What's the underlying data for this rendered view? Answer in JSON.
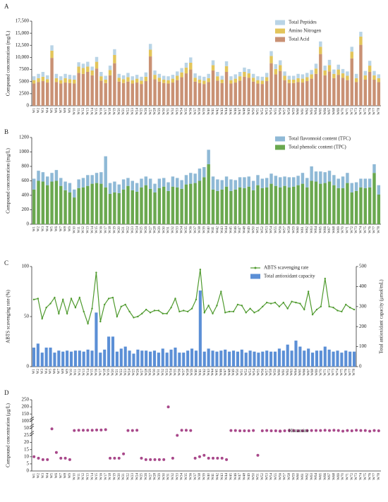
{
  "chart_data": [
    {
      "type": "bar",
      "panel_label": "A",
      "stacked": true,
      "y_label": "Compound concentration (mg/L)",
      "legend": "upper right",
      "categories": [
        "W1",
        "W2",
        "W3",
        "W4",
        "W5",
        "W6",
        "W7",
        "W8",
        "W9",
        "W10",
        "W11",
        "W12",
        "W13",
        "W14",
        "W15",
        "W16",
        "W17",
        "W18",
        "W19",
        "W20",
        "W21",
        "W22",
        "W23",
        "W24",
        "W25",
        "W26",
        "W27",
        "W28",
        "W29",
        "W30",
        "W31",
        "W32",
        "W33",
        "W34",
        "W35",
        "W36",
        "W37",
        "W38",
        "W39",
        "W40",
        "W41",
        "W42",
        "W43",
        "W44",
        "W45",
        "W46",
        "W47",
        "W48",
        "W49",
        "W50",
        "W51",
        "W52",
        "W53",
        "W54",
        "W55",
        "W56",
        "W57",
        "W58",
        "W59",
        "W60",
        "W61",
        "W62",
        "W63",
        "W64",
        "W65",
        "W66",
        "W67",
        "W68",
        "W69",
        "W70",
        "W71",
        "W72",
        "W73",
        "W74",
        "W75",
        "W76",
        "W77",
        "W78"
      ],
      "ylim": [
        0,
        17500
      ],
      "yticks": [
        0,
        2500,
        5000,
        7500,
        {
          "value": 10000,
          "label": "10,000"
        },
        {
          "value": 12500,
          "label": "12,500"
        },
        {
          "value": 15000,
          "label": "15,000"
        },
        {
          "value": 17500,
          "label": "17,500"
        }
      ],
      "series": [
        {
          "name": "Total Acid",
          "color": "#c99174",
          "values": [
            4600,
            4900,
            5100,
            4800,
            9900,
            4900,
            4600,
            4800,
            4700,
            4600,
            6800,
            6600,
            7000,
            6300,
            7700,
            5200,
            4700,
            6300,
            8800,
            5000,
            4700,
            5000,
            4600,
            4800,
            4500,
            5100,
            10200,
            5500,
            5000,
            4700,
            4600,
            4800,
            5300,
            5900,
            6700,
            7500,
            5000,
            4700,
            4500,
            4900,
            7300,
            5200,
            4700,
            7000,
            4600,
            4800,
            5200,
            6000,
            5800,
            5000,
            4600,
            4500,
            5100,
            8800,
            6500,
            7200,
            5300,
            4700,
            4700,
            4900,
            4800,
            5100,
            5600,
            6600,
            10700,
            6300,
            7100,
            5700,
            6400,
            5800,
            5300,
            9800,
            4900,
            12600,
            5400,
            7000,
            5400,
            4900
          ]
        },
        {
          "name": "Amino Nitrogen",
          "color": "#e3c55a",
          "values": [
            700,
            800,
            900,
            700,
            1500,
            800,
            700,
            900,
            800,
            800,
            1300,
            1200,
            1100,
            1000,
            1400,
            900,
            700,
            1100,
            1700,
            800,
            800,
            900,
            700,
            800,
            700,
            900,
            1400,
            900,
            800,
            700,
            700,
            800,
            900,
            1000,
            1200,
            1400,
            800,
            700,
            700,
            800,
            1100,
            900,
            700,
            1200,
            700,
            800,
            900,
            1000,
            900,
            800,
            700,
            700,
            800,
            1500,
            1100,
            1200,
            900,
            700,
            700,
            800,
            800,
            800,
            900,
            1100,
            1500,
            1000,
            1300,
            900,
            1100,
            900,
            900,
            1400,
            800,
            1700,
            900,
            1300,
            900,
            800
          ]
        },
        {
          "name": "Total Peptides",
          "color": "#b9d4e6",
          "values": [
            800,
            900,
            1000,
            800,
            1100,
            900,
            800,
            900,
            900,
            900,
            900,
            900,
            1000,
            800,
            1000,
            900,
            800,
            900,
            1200,
            800,
            800,
            900,
            800,
            800,
            800,
            900,
            1200,
            900,
            800,
            800,
            800,
            800,
            900,
            900,
            1000,
            1100,
            900,
            800,
            800,
            900,
            1000,
            900,
            800,
            1000,
            800,
            900,
            900,
            900,
            900,
            800,
            800,
            800,
            900,
            1000,
            1000,
            1000,
            900,
            800,
            800,
            900,
            900,
            900,
            900,
            1000,
            1100,
            1000,
            1100,
            900,
            1000,
            900,
            900,
            1000,
            900,
            1000,
            900,
            1000,
            900,
            800
          ]
        }
      ]
    },
    {
      "type": "bar",
      "panel_label": "B",
      "stacked": true,
      "y_label": "Compound concentration (mg/L)",
      "legend": "upper right",
      "categories": [
        "W1",
        "W2",
        "W3",
        "W4",
        "W5",
        "W6",
        "W7",
        "W8",
        "W9",
        "W10",
        "W11",
        "W12",
        "W13",
        "W14",
        "W15",
        "W16",
        "W17",
        "W18",
        "W19",
        "W20",
        "W21",
        "W22",
        "W23",
        "W24",
        "W25",
        "W26",
        "W27",
        "W28",
        "W29",
        "W30",
        "W31",
        "W32",
        "W33",
        "W34",
        "W35",
        "W36",
        "W37",
        "W38",
        "W39",
        "W40",
        "W41",
        "W42",
        "W43",
        "W44",
        "W45",
        "W46",
        "W47",
        "W48",
        "W49",
        "W50",
        "W51",
        "W52",
        "W53",
        "W54",
        "W55",
        "W56",
        "W57",
        "W58",
        "W59",
        "W60",
        "W61",
        "W62",
        "W63",
        "W64",
        "W65",
        "W66",
        "W67",
        "W68",
        "W69",
        "W70",
        "W71",
        "W72",
        "W73",
        "W74",
        "W75",
        "W76",
        "W77",
        "W78"
      ],
      "ylim": [
        0,
        1200
      ],
      "yticks": [
        0,
        200,
        400,
        600,
        800,
        1000,
        1200
      ],
      "series": [
        {
          "name": "Total phenolic content (TPC)",
          "color": "#6aa84f",
          "values": [
            480,
            600,
            590,
            540,
            590,
            600,
            530,
            470,
            440,
            370,
            500,
            510,
            530,
            560,
            570,
            560,
            510,
            420,
            440,
            430,
            480,
            530,
            470,
            450,
            510,
            540,
            490,
            440,
            500,
            520,
            460,
            520,
            510,
            490,
            550,
            560,
            570,
            600,
            650,
            830,
            480,
            460,
            480,
            520,
            460,
            480,
            510,
            500,
            520,
            470,
            540,
            500,
            510,
            560,
            530,
            510,
            530,
            510,
            520,
            540,
            560,
            510,
            600,
            590,
            560,
            570,
            590,
            540,
            500,
            500,
            570,
            440,
            460,
            510,
            500,
            510,
            710,
            410
          ]
        },
        {
          "name": "Total flavonnoid content (TFC)",
          "color": "#8fb9d6",
          "values": [
            150,
            140,
            130,
            120,
            120,
            150,
            110,
            120,
            130,
            110,
            120,
            130,
            150,
            120,
            140,
            160,
            430,
            150,
            150,
            120,
            140,
            110,
            130,
            120,
            120,
            120,
            140,
            120,
            130,
            120,
            120,
            140,
            130,
            120,
            130,
            150,
            130,
            170,
            140,
            200,
            180,
            160,
            130,
            140,
            160,
            130,
            140,
            150,
            140,
            130,
            140,
            130,
            130,
            140,
            140,
            140,
            130,
            140,
            130,
            130,
            150,
            130,
            200,
            140,
            170,
            150,
            150,
            140,
            130,
            160,
            140,
            130,
            120,
            120,
            130,
            120,
            120,
            130
          ]
        }
      ]
    },
    {
      "type": "bar",
      "panel_label": "C",
      "stacked": false,
      "y_label": "ABTS scavenging rate (%)",
      "y2_label": "Total antioxidant capacity (μmol/mL)",
      "legend": "upper right",
      "categories": [
        "W1",
        "W2",
        "W3",
        "W4",
        "W5",
        "W6",
        "W7",
        "W8",
        "W9",
        "W10",
        "W11",
        "W12",
        "W13",
        "W14",
        "W15",
        "W16",
        "W17",
        "W18",
        "W19",
        "W20",
        "W21",
        "W22",
        "W23",
        "W24",
        "W25",
        "W26",
        "W27",
        "W28",
        "W29",
        "W30",
        "W31",
        "W32",
        "W33",
        "W34",
        "W35",
        "W36",
        "W37",
        "W38",
        "W39",
        "W40",
        "W41",
        "W42",
        "W43",
        "W44",
        "W45",
        "W46",
        "W47",
        "W48",
        "W49",
        "W50",
        "W51",
        "W52",
        "W53",
        "W54",
        "W55",
        "W56",
        "W57",
        "W58",
        "W59",
        "W60",
        "W61",
        "W62",
        "W63",
        "W64",
        "W65",
        "W66",
        "W67",
        "W68",
        "W69",
        "W70",
        "W71",
        "W72",
        "W73",
        "W74",
        "W75",
        "W76",
        "W77",
        "W78"
      ],
      "ylim": [
        0,
        100
      ],
      "yticks": [
        0,
        50,
        100
      ],
      "y2lim": [
        0,
        500
      ],
      "y2ticks": [
        0,
        100,
        200,
        300,
        400,
        500
      ],
      "series": [
        {
          "name": "ABTS scavenging rate",
          "type": "line",
          "color": "#4f9a2e",
          "values": [
            67,
            68,
            48,
            59,
            63,
            69,
            53,
            67,
            53,
            68,
            59,
            69,
            55,
            43,
            58,
            94,
            45,
            62,
            68,
            69,
            50,
            60,
            62,
            55,
            49,
            50,
            53,
            57,
            54,
            56,
            56,
            53,
            53,
            59,
            68,
            55,
            56,
            55,
            58,
            67,
            97,
            54,
            61,
            53,
            61,
            75,
            54,
            55,
            55,
            62,
            61,
            54,
            58,
            54,
            56,
            60,
            64,
            63,
            64,
            60,
            64,
            58,
            65,
            64,
            63,
            57,
            75,
            52,
            57,
            60,
            88,
            60,
            59,
            56,
            55,
            62,
            59,
            57
          ]
        },
        {
          "name": "Total antioxidant capacity",
          "type": "bar",
          "axis": "y2",
          "color": "#5b8fd6",
          "values": [
            95,
            115,
            70,
            95,
            95,
            70,
            80,
            75,
            80,
            75,
            80,
            80,
            75,
            85,
            80,
            270,
            70,
            85,
            150,
            150,
            75,
            90,
            100,
            80,
            65,
            85,
            80,
            80,
            75,
            80,
            70,
            90,
            70,
            85,
            95,
            70,
            70,
            80,
            90,
            80,
            380,
            75,
            90,
            80,
            75,
            80,
            85,
            75,
            80,
            75,
            85,
            70,
            80,
            75,
            70,
            75,
            80,
            75,
            75,
            90,
            80,
            110,
            80,
            130,
            100,
            80,
            90,
            70,
            80,
            80,
            100,
            85,
            75,
            80,
            70,
            80,
            75,
            75
          ]
        }
      ]
    },
    {
      "type": "scatter",
      "panel_label": "D",
      "axis_break": true,
      "y_label": "Compound concentration (μg/L)",
      "legend": "right",
      "categories": [
        "W1",
        "W2",
        "W3",
        "W4",
        "W5",
        "W6",
        "W7",
        "W8",
        "W9",
        "W10",
        "W11",
        "W12",
        "W13",
        "W14",
        "W15",
        "W16",
        "W17",
        "W18",
        "W19",
        "W20",
        "W21",
        "W22",
        "W23",
        "W24",
        "W25",
        "W26",
        "W27",
        "W28",
        "W29",
        "W30",
        "W31",
        "W32",
        "W33",
        "W34",
        "W35",
        "W36",
        "W37",
        "W38",
        "W39",
        "W40",
        "W41",
        "W42",
        "W43",
        "W44",
        "W45",
        "W46",
        "W47",
        "W48",
        "W49",
        "W50",
        "W51",
        "W52",
        "W53",
        "W54",
        "W55",
        "W56",
        "W57",
        "W58",
        "W59",
        "W60",
        "W61",
        "W62",
        "W63",
        "W64",
        "W65",
        "W66",
        "W67",
        "W68",
        "W69",
        "W70",
        "W71",
        "W72",
        "W73",
        "W74",
        "W75",
        "W76",
        "W77",
        "W78"
      ],
      "ylim": [
        0,
        250
      ],
      "yticks": [
        0,
        5,
        10,
        15,
        20,
        25,
        50,
        100,
        150,
        200,
        250
      ],
      "series": [
        {
          "name": "Histamine",
          "color": "#a8488a",
          "values": [
            10,
            9,
            8,
            8,
            48,
            13,
            9,
            9,
            8,
            42,
            43,
            43,
            43,
            43,
            44,
            44,
            45,
            9,
            9,
            9,
            12,
            42,
            42,
            43,
            9,
            8,
            8,
            8,
            8,
            8,
            200,
            9,
            25,
            43,
            43,
            42,
            9,
            10,
            11,
            9,
            9,
            9,
            9,
            8,
            42,
            42,
            41,
            41,
            41,
            42,
            11,
            41,
            42,
            41,
            41,
            40,
            41,
            42,
            42,
            41,
            41,
            42,
            42,
            42,
            42,
            43,
            42,
            43,
            42,
            40,
            42,
            41,
            43,
            42,
            42,
            40,
            42,
            41
          ]
        }
      ]
    }
  ]
}
